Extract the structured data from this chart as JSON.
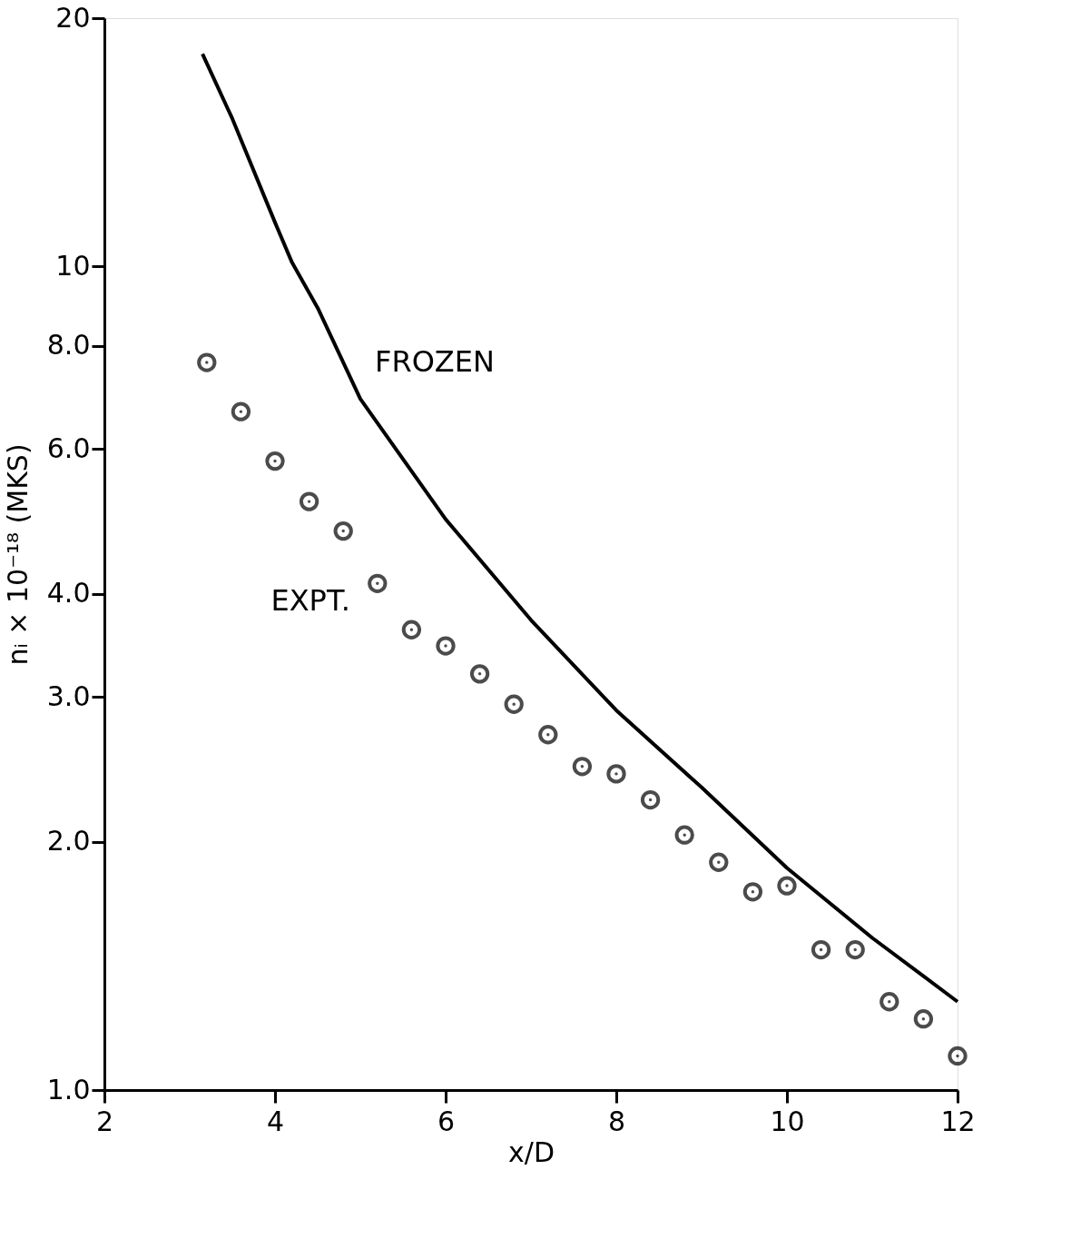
{
  "chart_data": {
    "type": "scatter",
    "xlabel": "x/D",
    "ylabel": "nᵢ × 10⁻¹⁸ (MKS)",
    "log": "y",
    "grid": false,
    "legend": false,
    "xlim": [
      2,
      12
    ],
    "xticks": [
      2,
      4,
      6,
      8,
      10,
      12
    ],
    "ylim": [
      1,
      20
    ],
    "yticks": [
      {
        "value": 1,
        "label": "1.0"
      },
      {
        "value": 2,
        "label": "2.0"
      },
      {
        "value": 3,
        "label": "3.0"
      },
      {
        "value": 4,
        "label": "4.0"
      },
      {
        "value": 6,
        "label": "6.0"
      },
      {
        "value": 8,
        "label": "8.0"
      },
      10,
      20
    ],
    "series": [
      {
        "name": "FROZEN",
        "type": "line",
        "color": "#000000",
        "marker": "none",
        "line_style": "solid",
        "x": [
          3.15,
          3.5,
          4.0,
          4.2,
          4.5,
          5.0,
          6.0,
          7.0,
          8.0,
          9.0,
          10.0,
          11.0,
          12.0
        ],
        "values": [
          18.1,
          15.1,
          11.3,
          10.1,
          8.9,
          6.9,
          4.93,
          3.72,
          2.89,
          2.33,
          1.86,
          1.53,
          1.28
        ]
      },
      {
        "name": "EXPT.",
        "color": "#000000",
        "marker": "circle",
        "x": [
          3.2,
          3.6,
          4.0,
          4.4,
          4.8,
          5.2,
          5.6,
          6.0,
          6.4,
          6.8,
          7.2,
          7.6,
          8.0,
          8.4,
          8.8,
          9.2,
          9.6,
          10.0,
          10.4,
          10.8,
          11.2,
          11.6,
          12.0
        ],
        "values": [
          7.64,
          6.66,
          5.8,
          5.18,
          4.77,
          4.12,
          3.62,
          3.46,
          3.2,
          2.94,
          2.7,
          2.47,
          2.42,
          2.25,
          2.04,
          1.89,
          1.74,
          1.77,
          1.48,
          1.48,
          1.28,
          1.22,
          1.1
        ]
      }
    ]
  }
}
